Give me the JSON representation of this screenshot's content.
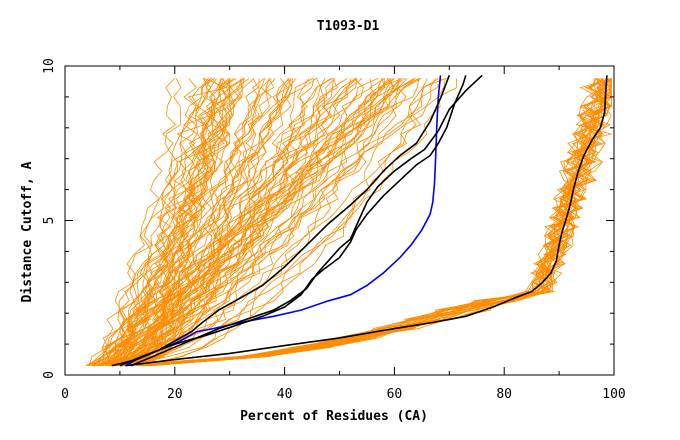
{
  "chart_data": {
    "type": "line",
    "title": "T1093-D1",
    "xlabel": "Percent of Residues (CA)",
    "ylabel": "Distance Cutoff, A",
    "xlim": [
      0,
      100
    ],
    "ylim": [
      0,
      10
    ],
    "x_ticks": [
      0,
      20,
      40,
      60,
      80,
      100
    ],
    "y_ticks": [
      0,
      5,
      10
    ],
    "grid": false,
    "legend": "none",
    "colors": {
      "background": "#ffffff",
      "axis": "#000000",
      "models": "#ff8c00",
      "reference": "#000000",
      "highlight": "#0000ff"
    },
    "series": [
      {
        "style": "highlight",
        "points": [
          [
            11,
            0.3
          ],
          [
            13,
            0.5
          ],
          [
            17,
            0.8
          ],
          [
            21,
            1.1
          ],
          [
            24,
            1.4
          ],
          [
            27,
            1.5
          ],
          [
            32,
            1.7
          ],
          [
            38,
            1.9
          ],
          [
            43,
            2.1
          ],
          [
            48,
            2.4
          ],
          [
            52,
            2.6
          ],
          [
            55,
            2.9
          ],
          [
            58,
            3.3
          ],
          [
            61,
            3.8
          ],
          [
            63,
            4.2
          ],
          [
            65,
            4.7
          ],
          [
            66.5,
            5.2
          ],
          [
            67,
            5.6
          ],
          [
            67.3,
            6.2
          ],
          [
            67.5,
            7.0
          ],
          [
            67.7,
            8.0
          ],
          [
            68,
            9.0
          ],
          [
            68.4,
            9.7
          ]
        ]
      },
      {
        "style": "reference",
        "points": [
          [
            11,
            0.3
          ],
          [
            20,
            0.5
          ],
          [
            30,
            0.7
          ],
          [
            40,
            0.95
          ],
          [
            50,
            1.2
          ],
          [
            60,
            1.5
          ],
          [
            67,
            1.7
          ],
          [
            73,
            1.9
          ],
          [
            78,
            2.2
          ],
          [
            82,
            2.5
          ],
          [
            85,
            2.7
          ],
          [
            87,
            3.0
          ],
          [
            88.5,
            3.3
          ],
          [
            89.5,
            3.7
          ],
          [
            90,
            4.2
          ],
          [
            90.5,
            4.6
          ],
          [
            91.2,
            5.0
          ],
          [
            92,
            5.5
          ],
          [
            92.6,
            6.0
          ],
          [
            93.5,
            6.6
          ],
          [
            94.5,
            7.1
          ],
          [
            96,
            7.6
          ],
          [
            97.5,
            8.0
          ],
          [
            98.3,
            8.5
          ],
          [
            98.5,
            9.2
          ],
          [
            98.7,
            9.7
          ]
        ]
      },
      {
        "style": "reference",
        "points": [
          [
            8.5,
            0.3
          ],
          [
            13,
            0.5
          ],
          [
            17,
            0.8
          ],
          [
            20,
            1.1
          ],
          [
            23,
            1.4
          ],
          [
            25,
            1.7
          ],
          [
            28,
            2.1
          ],
          [
            32,
            2.5
          ],
          [
            36,
            2.9
          ],
          [
            40,
            3.5
          ],
          [
            44,
            4.2
          ],
          [
            48,
            4.9
          ],
          [
            52,
            5.5
          ],
          [
            55,
            6.0
          ],
          [
            58,
            6.6
          ],
          [
            61,
            7.1
          ],
          [
            64,
            7.5
          ],
          [
            66.5,
            8.2
          ],
          [
            68.5,
            9.0
          ],
          [
            70,
            9.7
          ]
        ]
      },
      {
        "style": "reference",
        "points": [
          [
            10,
            0.3
          ],
          [
            14,
            0.6
          ],
          [
            20,
            1.0
          ],
          [
            26,
            1.3
          ],
          [
            31,
            1.6
          ],
          [
            36,
            1.9
          ],
          [
            40,
            2.2
          ],
          [
            43,
            2.6
          ],
          [
            45,
            3.1
          ],
          [
            47,
            3.4
          ],
          [
            50,
            3.8
          ],
          [
            52,
            4.3
          ],
          [
            53,
            4.7
          ],
          [
            55,
            5.2
          ],
          [
            58,
            5.8
          ],
          [
            61,
            6.3
          ],
          [
            64,
            6.8
          ],
          [
            66.5,
            7.1
          ],
          [
            68,
            7.5
          ],
          [
            69.5,
            8.0
          ],
          [
            71,
            8.8
          ],
          [
            72.5,
            9.4
          ],
          [
            73,
            9.7
          ]
        ]
      },
      {
        "style": "reference",
        "points": [
          [
            12,
            0.3
          ],
          [
            16,
            0.6
          ],
          [
            20,
            0.9
          ],
          [
            24,
            1.2
          ],
          [
            28,
            1.5
          ],
          [
            33,
            1.8
          ],
          [
            38,
            2.1
          ],
          [
            41,
            2.4
          ],
          [
            44,
            2.8
          ],
          [
            46,
            3.3
          ],
          [
            48,
            3.7
          ],
          [
            50,
            4.1
          ],
          [
            52,
            4.4
          ],
          [
            53.5,
            5.0
          ],
          [
            55,
            5.6
          ],
          [
            57,
            6.1
          ],
          [
            60,
            6.6
          ],
          [
            63,
            7.0
          ],
          [
            65.5,
            7.3
          ],
          [
            68,
            7.9
          ],
          [
            70,
            8.6
          ],
          [
            73,
            9.2
          ],
          [
            76,
            9.7
          ]
        ]
      }
    ]
  }
}
